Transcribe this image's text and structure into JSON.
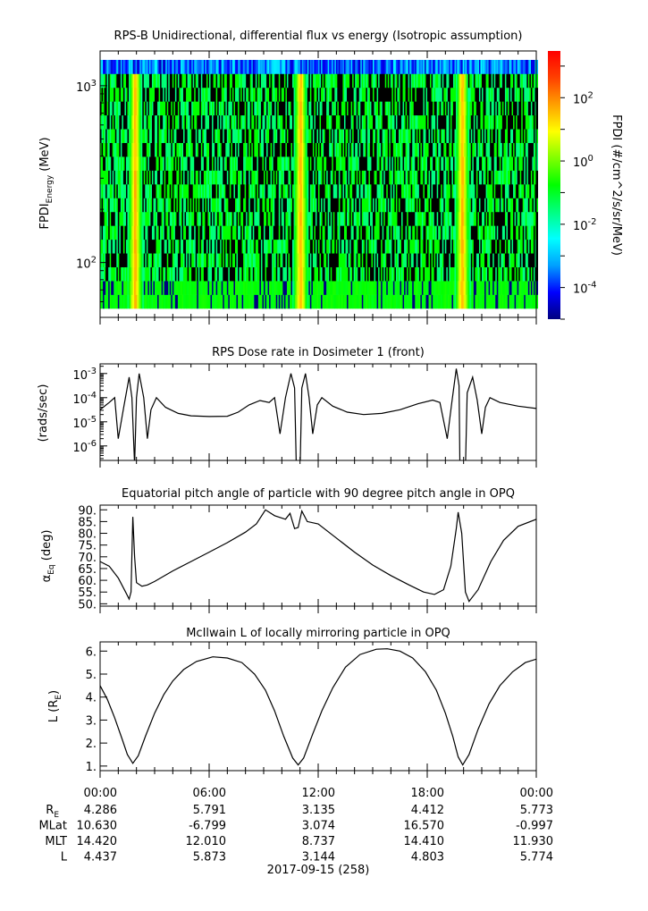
{
  "chart_data": [
    {
      "type": "heatmap",
      "title": "RPS-B  Unidirectional, differential flux vs energy (Isotropic assumption)",
      "ylabel": "FPDI",
      "ylabel_sub": "Energy",
      "ylabel_unit": " (MeV)",
      "yscale": "log",
      "ylim": [
        55,
        1400
      ],
      "y_ticks": [
        {
          "value": 100,
          "base": "10",
          "exp": "2"
        },
        {
          "value": 1000,
          "base": "10",
          "exp": "3"
        }
      ],
      "xlim_hours": [
        0,
        24
      ],
      "energy_bins": 18,
      "bright_band_hours": [
        1.9,
        11.0,
        19.9
      ],
      "colorbar": {
        "label": "FPDI (#/cm^2/s/sr/MeV)",
        "scale": "log",
        "range": [
          1e-05,
          3000
        ],
        "ticks": [
          {
            "value": -4,
            "base": "10",
            "exp": "-4"
          },
          {
            "value": -2,
            "base": "10",
            "exp": "-2"
          },
          {
            "value": 0,
            "base": "10",
            "exp": "0"
          },
          {
            "value": 2,
            "base": "10",
            "exp": "2"
          }
        ],
        "colors": [
          "#000080",
          "#0000ff",
          "#00a0ff",
          "#00ffff",
          "#00ff80",
          "#00ff00",
          "#80ff00",
          "#ffff00",
          "#ffa000",
          "#ff4000",
          "#ff0000"
        ]
      }
    },
    {
      "type": "line",
      "title": "RPS  Dose rate in Dosimeter 1 (front)",
      "ylabel": "(rads/sec)",
      "yscale": "log",
      "ylim_log10": [
        -6.6,
        -2.6
      ],
      "y_ticks": [
        {
          "value": -6,
          "base": "10",
          "exp": "-6"
        },
        {
          "value": -5,
          "base": "10",
          "exp": "-5"
        },
        {
          "value": -4,
          "base": "10",
          "exp": "-4"
        },
        {
          "value": -3,
          "base": "10",
          "exp": "-3"
        }
      ],
      "series_log10": [
        [
          0,
          -4.5
        ],
        [
          0.5,
          -4.2
        ],
        [
          0.8,
          -4.0
        ],
        [
          1.0,
          -5.7
        ],
        [
          1.3,
          -4.4
        ],
        [
          1.6,
          -3.15
        ],
        [
          1.75,
          -4
        ],
        [
          1.9,
          -6.8
        ],
        [
          2.0,
          -4
        ],
        [
          2.15,
          -3.0
        ],
        [
          2.4,
          -4.0
        ],
        [
          2.6,
          -5.7
        ],
        [
          2.8,
          -4.5
        ],
        [
          3.1,
          -4.0
        ],
        [
          3.6,
          -4.4
        ],
        [
          4.3,
          -4.65
        ],
        [
          5,
          -4.75
        ],
        [
          6,
          -4.78
        ],
        [
          7,
          -4.77
        ],
        [
          7.6,
          -4.6
        ],
        [
          8.2,
          -4.3
        ],
        [
          8.8,
          -4.12
        ],
        [
          9.3,
          -4.2
        ],
        [
          9.6,
          -4.0
        ],
        [
          9.9,
          -5.5
        ],
        [
          10.2,
          -4.0
        ],
        [
          10.5,
          -3.0
        ],
        [
          10.7,
          -3.6
        ],
        [
          10.8,
          -7
        ],
        [
          11.0,
          -7
        ],
        [
          11.1,
          -3.6
        ],
        [
          11.3,
          -3.0
        ],
        [
          11.5,
          -4.0
        ],
        [
          11.7,
          -5.5
        ],
        [
          11.95,
          -4.3
        ],
        [
          12.2,
          -4.0
        ],
        [
          12.8,
          -4.35
        ],
        [
          13.6,
          -4.6
        ],
        [
          14.5,
          -4.7
        ],
        [
          15.5,
          -4.65
        ],
        [
          16.5,
          -4.5
        ],
        [
          17.5,
          -4.25
        ],
        [
          18.3,
          -4.1
        ],
        [
          18.7,
          -4.2
        ],
        [
          19.1,
          -5.7
        ],
        [
          19.35,
          -4.2
        ],
        [
          19.6,
          -2.8
        ],
        [
          19.75,
          -3.5
        ],
        [
          19.8,
          -7
        ],
        [
          20.1,
          -7
        ],
        [
          20.2,
          -3.8
        ],
        [
          20.5,
          -3.15
        ],
        [
          20.75,
          -4.1
        ],
        [
          21.0,
          -5.5
        ],
        [
          21.2,
          -4.4
        ],
        [
          21.45,
          -4.0
        ],
        [
          22,
          -4.2
        ],
        [
          23,
          -4.35
        ],
        [
          24,
          -4.45
        ]
      ]
    },
    {
      "type": "line",
      "title": "Equatorial pitch angle of particle with 90 degree pitch angle in OPQ",
      "ylabel": "α",
      "ylabel_sub": "Eq",
      "ylabel_unit": " (deg)",
      "ylim": [
        49,
        92
      ],
      "y_ticks": [
        "50.",
        "55.",
        "60.",
        "65.",
        "70.",
        "75.",
        "80.",
        "85.",
        "90."
      ],
      "series": [
        [
          0,
          68
        ],
        [
          0.5,
          66
        ],
        [
          1.0,
          61
        ],
        [
          1.4,
          55
        ],
        [
          1.6,
          52
        ],
        [
          1.7,
          55
        ],
        [
          1.8,
          87
        ],
        [
          1.9,
          70
        ],
        [
          2.0,
          59
        ],
        [
          2.3,
          57.5
        ],
        [
          2.6,
          58
        ],
        [
          3,
          59.5
        ],
        [
          4,
          64
        ],
        [
          5,
          68
        ],
        [
          6,
          72
        ],
        [
          7,
          76
        ],
        [
          8,
          80.5
        ],
        [
          8.6,
          84
        ],
        [
          9.1,
          90
        ],
        [
          9.6,
          87.5
        ],
        [
          10.2,
          86
        ],
        [
          10.45,
          88.5
        ],
        [
          10.7,
          82
        ],
        [
          10.9,
          82.5
        ],
        [
          11.1,
          89.5
        ],
        [
          11.4,
          85
        ],
        [
          12,
          84
        ],
        [
          13,
          78
        ],
        [
          14,
          72
        ],
        [
          15,
          66.5
        ],
        [
          16,
          62
        ],
        [
          17,
          58
        ],
        [
          17.8,
          55
        ],
        [
          18.4,
          54
        ],
        [
          18.9,
          56
        ],
        [
          19.3,
          66
        ],
        [
          19.6,
          82
        ],
        [
          19.7,
          89
        ],
        [
          19.9,
          80
        ],
        [
          20.1,
          55
        ],
        [
          20.3,
          51
        ],
        [
          20.8,
          56
        ],
        [
          21.5,
          68
        ],
        [
          22.2,
          77
        ],
        [
          23,
          83
        ],
        [
          24,
          86
        ]
      ]
    },
    {
      "type": "line",
      "title": "McIlwain L of locally mirroring particle in OPQ",
      "ylabel": "L (R",
      "ylabel_sub": "E",
      "ylabel_unit": ")",
      "ylim": [
        0.8,
        6.4
      ],
      "y_ticks": [
        "1.",
        "2.",
        "3.",
        "4.",
        "5.",
        "6."
      ],
      "series": [
        [
          0,
          4.5
        ],
        [
          0.4,
          3.9
        ],
        [
          0.8,
          3.1
        ],
        [
          1.2,
          2.2
        ],
        [
          1.5,
          1.5
        ],
        [
          1.8,
          1.12
        ],
        [
          2.1,
          1.45
        ],
        [
          2.5,
          2.3
        ],
        [
          3,
          3.3
        ],
        [
          3.5,
          4.1
        ],
        [
          4,
          4.7
        ],
        [
          4.6,
          5.2
        ],
        [
          5.3,
          5.55
        ],
        [
          6.2,
          5.75
        ],
        [
          7,
          5.7
        ],
        [
          7.8,
          5.5
        ],
        [
          8.5,
          5.0
        ],
        [
          9.1,
          4.3
        ],
        [
          9.6,
          3.4
        ],
        [
          10.1,
          2.3
        ],
        [
          10.6,
          1.35
        ],
        [
          10.9,
          1.05
        ],
        [
          11.2,
          1.35
        ],
        [
          11.7,
          2.4
        ],
        [
          12.2,
          3.4
        ],
        [
          12.8,
          4.4
        ],
        [
          13.5,
          5.3
        ],
        [
          14.3,
          5.85
        ],
        [
          15.2,
          6.08
        ],
        [
          15.8,
          6.1
        ],
        [
          16.5,
          6.0
        ],
        [
          17.2,
          5.7
        ],
        [
          17.9,
          5.1
        ],
        [
          18.5,
          4.3
        ],
        [
          19,
          3.3
        ],
        [
          19.4,
          2.3
        ],
        [
          19.7,
          1.4
        ],
        [
          19.95,
          1.05
        ],
        [
          20.3,
          1.5
        ],
        [
          20.8,
          2.6
        ],
        [
          21.4,
          3.7
        ],
        [
          22,
          4.5
        ],
        [
          22.7,
          5.1
        ],
        [
          23.4,
          5.5
        ],
        [
          24,
          5.65
        ]
      ]
    }
  ],
  "time_axis": {
    "tick_labels": [
      "00:00",
      "06:00",
      "12:00",
      "18:00",
      "00:00"
    ],
    "rows": [
      {
        "label": "R",
        "label_sub": "E",
        "values": [
          "4.286",
          "5.791",
          "3.135",
          "4.412",
          "5.773"
        ]
      },
      {
        "label": "MLat",
        "values": [
          "10.630",
          "-6.799",
          "3.074",
          "16.570",
          "-0.997"
        ]
      },
      {
        "label": "MLT",
        "values": [
          "14.420",
          "12.010",
          "8.737",
          "14.410",
          "11.930"
        ]
      },
      {
        "label": "L",
        "values": [
          "4.437",
          "5.873",
          "3.144",
          "4.803",
          "5.774"
        ]
      }
    ],
    "date_label": "2017-09-15 (258)"
  }
}
